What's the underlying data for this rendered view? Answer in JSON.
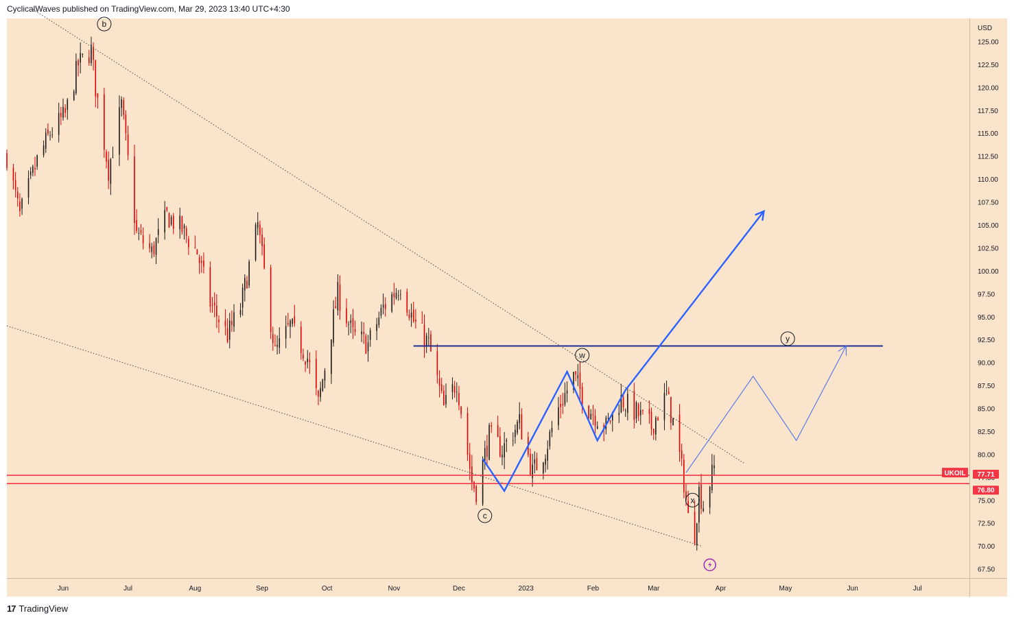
{
  "header": {
    "publisher_line": "CyclicalWaves published on TradingView.com, Mar 29, 2023 13:40 UTC+4:30"
  },
  "footer": {
    "brand": "TradingView",
    "logo_text": "17"
  },
  "colors": {
    "background": "#fbe4cc",
    "bull": "#1a1a1a",
    "bear": "#e00000",
    "level": "#f23645",
    "path_strong": "#2962ff",
    "path_light": "#4b73e8",
    "resistance": "#1d2e8f",
    "trend": "#555555"
  },
  "chart_data": {
    "type": "candlestick",
    "symbol": "UKOIL",
    "currency": "USD",
    "yticks": [
      125,
      122.5,
      120,
      117.5,
      115,
      112.5,
      110,
      107.5,
      105,
      102.5,
      100,
      97.5,
      95,
      92.5,
      90,
      87.5,
      85,
      82.5,
      80,
      77.5,
      75,
      72.5,
      70,
      67.5
    ],
    "ytick_labels": [
      "125.00",
      "122.50",
      "120.00",
      "117.50",
      "115.00",
      "112.50",
      "110.00",
      "107.50",
      "105.00",
      "102.50",
      "100.00",
      "97.50",
      "95.00",
      "92.50",
      "90.00",
      "87.50",
      "85.00",
      "82.50",
      "80.00",
      "77.50",
      "75.00",
      "72.50",
      "70.00",
      "67.50"
    ],
    "ylim": [
      66.5,
      127.5
    ],
    "xlim": [
      "2022-05-06",
      "2023-07-25"
    ],
    "xticks": [
      {
        "label": "Jun",
        "date": "2022-06-01"
      },
      {
        "label": "Jul",
        "date": "2022-07-01"
      },
      {
        "label": "Aug",
        "date": "2022-08-01"
      },
      {
        "label": "Sep",
        "date": "2022-09-01"
      },
      {
        "label": "Oct",
        "date": "2022-10-01"
      },
      {
        "label": "Nov",
        "date": "2022-11-01"
      },
      {
        "label": "Dec",
        "date": "2022-12-01"
      },
      {
        "label": "2023",
        "date": "2023-01-01"
      },
      {
        "label": "Feb",
        "date": "2023-02-01"
      },
      {
        "label": "Mar",
        "date": "2023-03-01"
      },
      {
        "label": "Apr",
        "date": "2023-04-01"
      },
      {
        "label": "May",
        "date": "2023-05-01"
      },
      {
        "label": "Jun",
        "date": "2023-06-01"
      },
      {
        "label": "Jul",
        "date": "2023-07-01"
      }
    ],
    "price_path": [
      [
        "2022-05-06",
        112.5
      ],
      [
        "2022-05-12",
        106
      ],
      [
        "2022-05-20",
        112
      ],
      [
        "2022-05-26",
        115
      ],
      [
        "2022-06-02",
        117
      ],
      [
        "2022-06-08",
        122.5
      ],
      [
        "2022-06-14",
        124
      ],
      [
        "2022-06-16",
        120
      ],
      [
        "2022-06-22",
        111
      ],
      [
        "2022-06-28",
        118
      ],
      [
        "2022-07-05",
        104
      ],
      [
        "2022-07-12",
        102
      ],
      [
        "2022-07-19",
        106
      ],
      [
        "2022-07-26",
        104.5
      ],
      [
        "2022-08-02",
        102
      ],
      [
        "2022-08-08",
        96.5
      ],
      [
        "2022-08-16",
        93
      ],
      [
        "2022-08-22",
        96
      ],
      [
        "2022-08-30",
        105
      ],
      [
        "2022-09-07",
        91
      ],
      [
        "2022-09-14",
        94
      ],
      [
        "2022-09-22",
        90.5
      ],
      [
        "2022-09-27",
        85.5
      ],
      [
        "2022-10-06",
        97.5
      ],
      [
        "2022-10-13",
        93
      ],
      [
        "2022-10-20",
        92
      ],
      [
        "2022-10-27",
        96
      ],
      [
        "2022-11-04",
        98.5
      ],
      [
        "2022-11-10",
        94.5
      ],
      [
        "2022-11-17",
        92
      ],
      [
        "2022-11-24",
        85
      ],
      [
        "2022-11-30",
        88
      ],
      [
        "2022-12-07",
        77
      ],
      [
        "2022-12-09",
        76
      ],
      [
        "2022-12-15",
        82
      ],
      [
        "2022-12-21",
        80.5
      ],
      [
        "2022-12-29",
        83.5
      ],
      [
        "2023-01-04",
        78
      ],
      [
        "2023-01-10",
        80.5
      ],
      [
        "2023-01-16",
        85
      ],
      [
        "2023-01-23",
        88.5
      ],
      [
        "2023-01-30",
        85
      ],
      [
        "2023-02-07",
        83
      ],
      [
        "2023-02-14",
        86
      ],
      [
        "2023-02-21",
        84.5
      ],
      [
        "2023-02-28",
        83
      ],
      [
        "2023-03-07",
        86.5
      ],
      [
        "2023-03-11",
        82.5
      ],
      [
        "2023-03-15",
        77
      ],
      [
        "2023-03-17",
        73
      ],
      [
        "2023-03-20",
        71.5
      ],
      [
        "2023-03-22",
        76
      ],
      [
        "2023-03-24",
        74.5
      ],
      [
        "2023-03-27",
        77
      ],
      [
        "2023-03-29",
        78.5
      ]
    ],
    "current_price": {
      "label": "77.71",
      "value": 77.71
    },
    "horizontal_levels": [
      {
        "label": "77.71",
        "value": 77.71
      },
      {
        "label": "76.80",
        "value": 76.8
      }
    ],
    "symbol_tag": {
      "label": "UKOIL",
      "value": 78.0
    },
    "resistance_line": {
      "from": [
        "2022-11-10",
        91.8
      ],
      "to": [
        "2023-06-15",
        91.8
      ]
    },
    "trend_lines": [
      {
        "from": [
          "2022-05-18",
          128.5
        ],
        "to": [
          "2023-04-12",
          79
        ]
      },
      {
        "from": [
          "2022-05-06",
          94
        ],
        "to": [
          "2023-03-23",
          70
        ]
      }
    ],
    "projection_strong": [
      [
        "2022-12-12",
        79.5
      ],
      [
        "2022-12-22",
        76
      ],
      [
        "2023-01-20",
        89
      ],
      [
        "2023-02-03",
        81.5
      ],
      [
        "2023-02-16",
        87
      ],
      [
        "2023-04-21",
        106.5
      ]
    ],
    "projection_light": [
      [
        "2023-03-16",
        78
      ],
      [
        "2023-04-16",
        88.5
      ],
      [
        "2023-05-06",
        81.5
      ],
      [
        "2023-05-29",
        91.8
      ]
    ],
    "wave_labels": [
      {
        "text": "b",
        "date": "2022-06-20",
        "value": 126.9
      },
      {
        "text": "c",
        "date": "2022-12-13",
        "value": 73.3
      },
      {
        "text": "w",
        "date": "2023-01-27",
        "value": 90.8
      },
      {
        "text": "y",
        "date": "2023-05-02",
        "value": 92.6
      },
      {
        "text": "x",
        "date": "2023-03-19",
        "value": 75.0
      }
    ],
    "event_icon": {
      "date": "2023-03-27",
      "value": 67.95
    }
  }
}
